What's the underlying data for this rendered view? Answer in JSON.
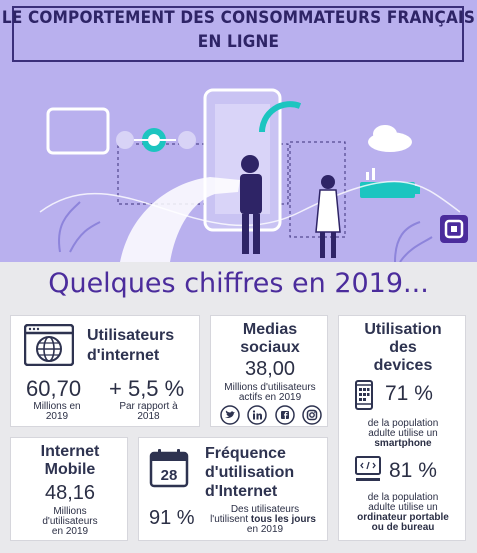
{
  "title": {
    "line1": "LE COMPORTEMENT DES CONSOMMATEURS FRANÇAIS",
    "line2": "EN LIGNE"
  },
  "heading": "Quelques chiffres en 2019...",
  "colors": {
    "accent": "#4b2c9c",
    "teal": "#1cc5c0",
    "hero_bg": "#b9b0ee"
  },
  "internet_users": {
    "title_line1": "Utilisateurs",
    "title_line2": "d'internet",
    "icon": "globe-browser-icon",
    "value": "60,70",
    "value_label_1": "Millions en",
    "value_label_2": "2019",
    "growth": "+ 5,5 %",
    "growth_label_1": "Par rapport à",
    "growth_label_2": "2018"
  },
  "social_media": {
    "title_line1": "Medias",
    "title_line2": "sociaux",
    "value": "38,00",
    "label_1": "Millions d'utilisateurs",
    "label_2": "actifs en 2019",
    "icons": [
      "twitter-icon",
      "linkedin-icon",
      "facebook-icon",
      "instagram-icon"
    ]
  },
  "devices": {
    "title_line1": "Utilisation",
    "title_line2": "des",
    "title_line3": "devices",
    "smartphone_value": "71 %",
    "smartphone_label_1": "de la population",
    "smartphone_label_2": "adulte utilise un",
    "smartphone_label_3": "smartphone",
    "computer_value": "81 %",
    "computer_label_1": "de la population",
    "computer_label_2": "adulte utilise un",
    "computer_label_3": "ordinateur portable",
    "computer_label_4": "ou de bureau"
  },
  "mobile_internet": {
    "title_line1": "Internet",
    "title_line2": "Mobile",
    "value": "48,16",
    "label_1": "Millions",
    "label_2": "d'utilisateurs",
    "label_3": "en 2019"
  },
  "frequency": {
    "title_line1": "Fréquence",
    "title_line2": "d'utilisation",
    "title_line3": "d'Internet",
    "calendar_day": "28",
    "value": "91 %",
    "label_1": "Des utilisateurs",
    "label_2a": "l'utilisent ",
    "label_2b": "tous les jours",
    "label_3": "en 2019"
  }
}
